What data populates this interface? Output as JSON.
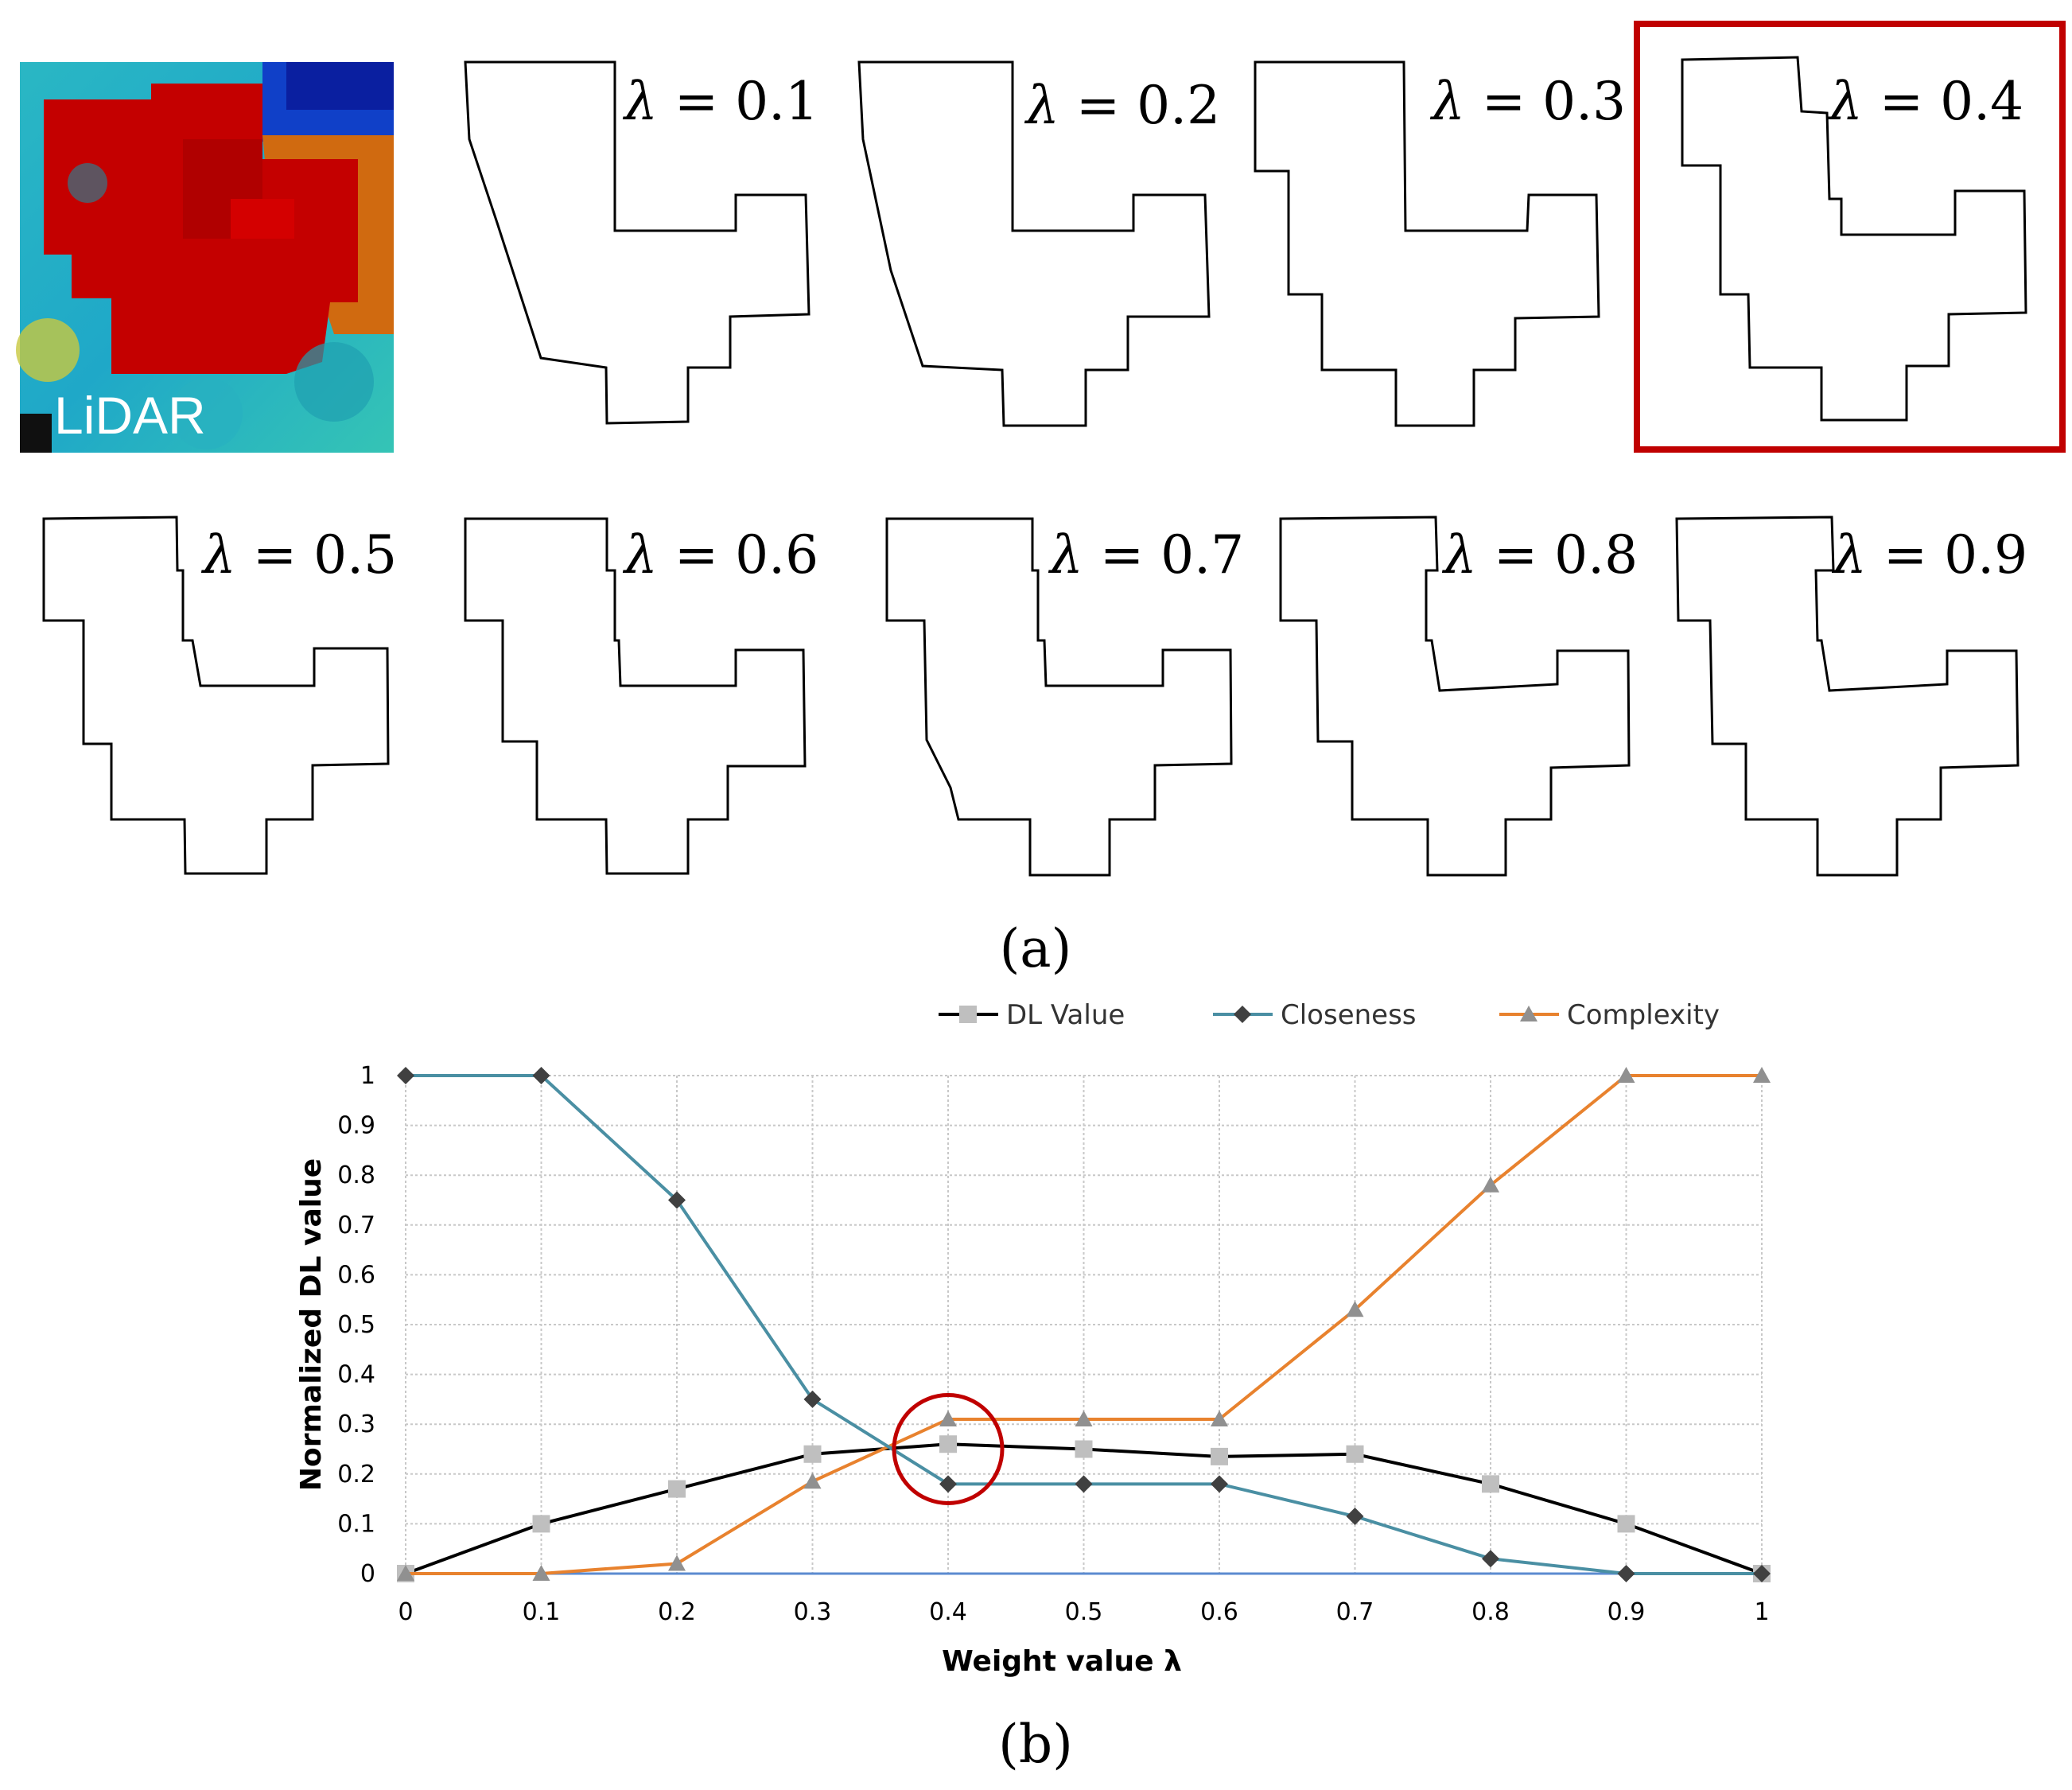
{
  "figure": {
    "lidar_label": "LiDAR",
    "panel_a_label": "(a)",
    "panel_b_label": "(b)",
    "lambda_symbol": "λ",
    "lambda_values": [
      "0.1",
      "0.2",
      "0.3",
      "0.4",
      "0.5",
      "0.6",
      "0.7",
      "0.8",
      "0.9"
    ],
    "selected_lambda": "0.4",
    "highlight_color": "#c00000"
  },
  "chart_data": {
    "type": "line",
    "xlabel": "Weight value λ",
    "ylabel": "Normalized DL value",
    "xlim": [
      0,
      1
    ],
    "ylim": [
      0,
      1
    ],
    "x": [
      0,
      0.1,
      0.2,
      0.3,
      0.4,
      0.5,
      0.6,
      0.7,
      0.8,
      0.9,
      1
    ],
    "x_tick_labels": [
      "0",
      "0.1",
      "0.2",
      "0.3",
      "0.4",
      "0.5",
      "0.6",
      "0.7",
      "0.8",
      "0.9",
      "1"
    ],
    "y_tick_labels": [
      "0",
      "0.1",
      "0.2",
      "0.3",
      "0.4",
      "0.5",
      "0.6",
      "0.7",
      "0.8",
      "0.9",
      "1"
    ],
    "grid": true,
    "legend_position": "top",
    "series": [
      {
        "name": "DL Value",
        "color": "#000000",
        "marker": "square",
        "marker_color": "#bfbfbf",
        "values": [
          0,
          0.1,
          0.17,
          0.24,
          0.26,
          0.25,
          0.235,
          0.24,
          0.18,
          0.1,
          0
        ]
      },
      {
        "name": "Closeness",
        "color": "#4a8fa3",
        "marker": "diamond",
        "marker_color": "#404040",
        "values": [
          1,
          1,
          0.75,
          0.35,
          0.18,
          0.18,
          0.18,
          0.115,
          0.03,
          0,
          0
        ]
      },
      {
        "name": "Complexity",
        "color": "#e8822e",
        "marker": "triangle",
        "marker_color": "#909090",
        "values": [
          0,
          0,
          0.02,
          0.185,
          0.31,
          0.31,
          0.31,
          0.53,
          0.78,
          1,
          1
        ]
      }
    ],
    "annotation": {
      "type": "circle",
      "x": 0.4,
      "y": 0.25,
      "color": "#c00000"
    }
  }
}
